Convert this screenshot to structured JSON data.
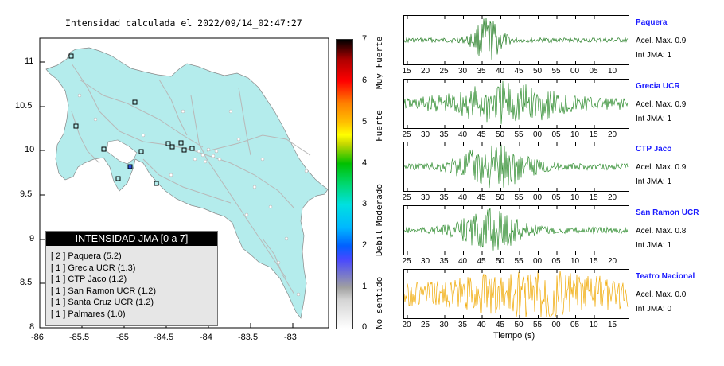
{
  "map": {
    "title": "Intensidad calculada el 2022/09/14_02:47:27",
    "lon_ticks": [
      "-86",
      "-85.5",
      "-85",
      "-84.5",
      "-84",
      "-83.5",
      "-83"
    ],
    "lat_ticks": [
      "11",
      "10.5",
      "10",
      "9.5",
      "9",
      "8.5",
      "8"
    ],
    "land_color": "#b4ecec",
    "road_color": "#b8b8b8"
  },
  "legend": {
    "title": "INTENSIDAD JMA [0 a 7]",
    "items": [
      "[ 2 ] Paquera (5.2)",
      "[ 1 ] Grecia UCR (1.3)",
      "[ 1 ] CTP Jaco (1.2)",
      "[ 1 ] San Ramon UCR (1.2)",
      "[ 1 ] Santa Cruz UCR (1.2)",
      "[ 1 ] Palmares (1.0)"
    ]
  },
  "colorbar": {
    "numbers": [
      "7",
      "6",
      "5",
      "4",
      "3",
      "2",
      "1",
      "0"
    ],
    "words": [
      "Muy Fuerte",
      "Fuerte",
      "Moderado",
      "Debil",
      "No sentido"
    ]
  },
  "stations": [
    {
      "name": "Paquera",
      "accel": "Acel. Max. 0.9",
      "int": "Int JMA: 1",
      "color": "#1f7a1f",
      "ticks": [
        "15",
        "20",
        "25",
        "30",
        "35",
        "40",
        "45",
        "50",
        "55",
        "00",
        "05",
        "10"
      ]
    },
    {
      "name": "Grecia UCR",
      "accel": "Acel. Max. 0.9",
      "int": "Int JMA: 1",
      "color": "#2a8a2a",
      "ticks": [
        "25",
        "30",
        "35",
        "40",
        "45",
        "50",
        "55",
        "00",
        "05",
        "10",
        "15",
        "20"
      ]
    },
    {
      "name": "CTP Jaco",
      "accel": "Acel. Max. 0.9",
      "int": "Int JMA: 1",
      "color": "#2a8a2a",
      "ticks": [
        "25",
        "30",
        "35",
        "40",
        "45",
        "50",
        "55",
        "00",
        "05",
        "10",
        "15",
        "20"
      ]
    },
    {
      "name": "San Ramon UCR",
      "accel": "Acel. Max. 0.8",
      "int": "Int JMA: 1",
      "color": "#2a8a2a",
      "ticks": [
        "25",
        "30",
        "35",
        "40",
        "45",
        "50",
        "55",
        "00",
        "05",
        "10",
        "15",
        "20"
      ]
    },
    {
      "name": "Teatro Nacional",
      "accel": "Acel. Max. 0.0",
      "int": "Int JMA: 0",
      "color": "#f0a800",
      "ticks": [
        "20",
        "25",
        "30",
        "35",
        "40",
        "45",
        "50",
        "55",
        "00",
        "05",
        "10",
        "15"
      ]
    }
  ],
  "x_axis_label": "Tiempo (s)"
}
